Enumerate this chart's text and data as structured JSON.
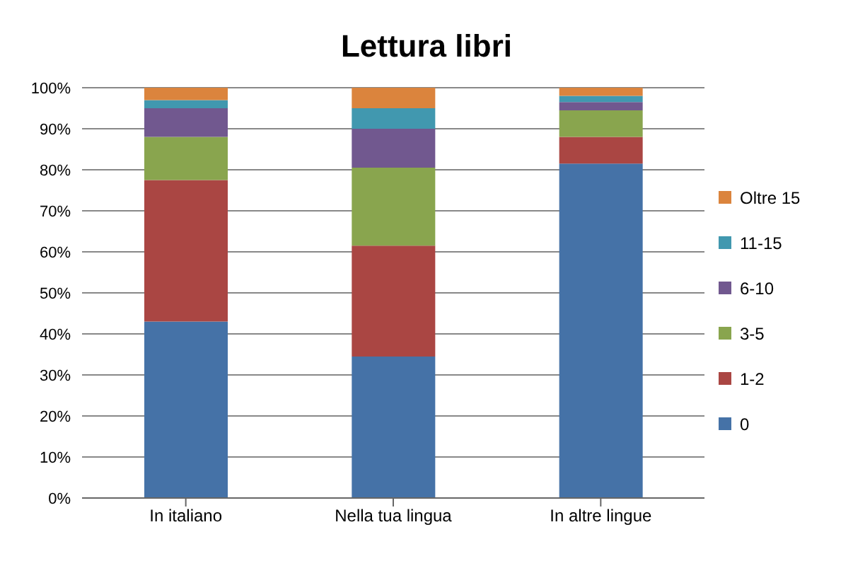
{
  "chart_data": {
    "type": "bar",
    "title": "Lettura libri",
    "stacked": true,
    "categories": [
      "In italiano",
      "Nella tua lingua",
      "In altre lingue"
    ],
    "series": [
      {
        "name": "0",
        "color": "#4572a7",
        "values": [
          43,
          34.5,
          81.5
        ]
      },
      {
        "name": "1-2",
        "color": "#aa4643",
        "values": [
          34.5,
          27,
          6.5
        ]
      },
      {
        "name": "3-5",
        "color": "#89a54e",
        "values": [
          10.5,
          19,
          6.5
        ]
      },
      {
        "name": "6-10",
        "color": "#71588f",
        "values": [
          7,
          9.5,
          2
        ]
      },
      {
        "name": "11-15",
        "color": "#4198af",
        "values": [
          2,
          5,
          1.5
        ]
      },
      {
        "name": "Oltre 15",
        "color": "#db843d",
        "values": [
          3,
          5,
          2
        ]
      }
    ],
    "ylim": [
      0,
      100
    ],
    "yticks": [
      {
        "value": 0,
        "label": "0%"
      },
      {
        "value": 10,
        "label": "10%"
      },
      {
        "value": 20,
        "label": "20%"
      },
      {
        "value": 30,
        "label": "30%"
      },
      {
        "value": 40,
        "label": "40%"
      },
      {
        "value": 50,
        "label": "50%"
      },
      {
        "value": 60,
        "label": "60%"
      },
      {
        "value": 70,
        "label": "70%"
      },
      {
        "value": 80,
        "label": "80%"
      },
      {
        "value": 90,
        "label": "90%"
      },
      {
        "value": 100,
        "label": "100%"
      }
    ],
    "grid": "y",
    "legend": "right"
  }
}
